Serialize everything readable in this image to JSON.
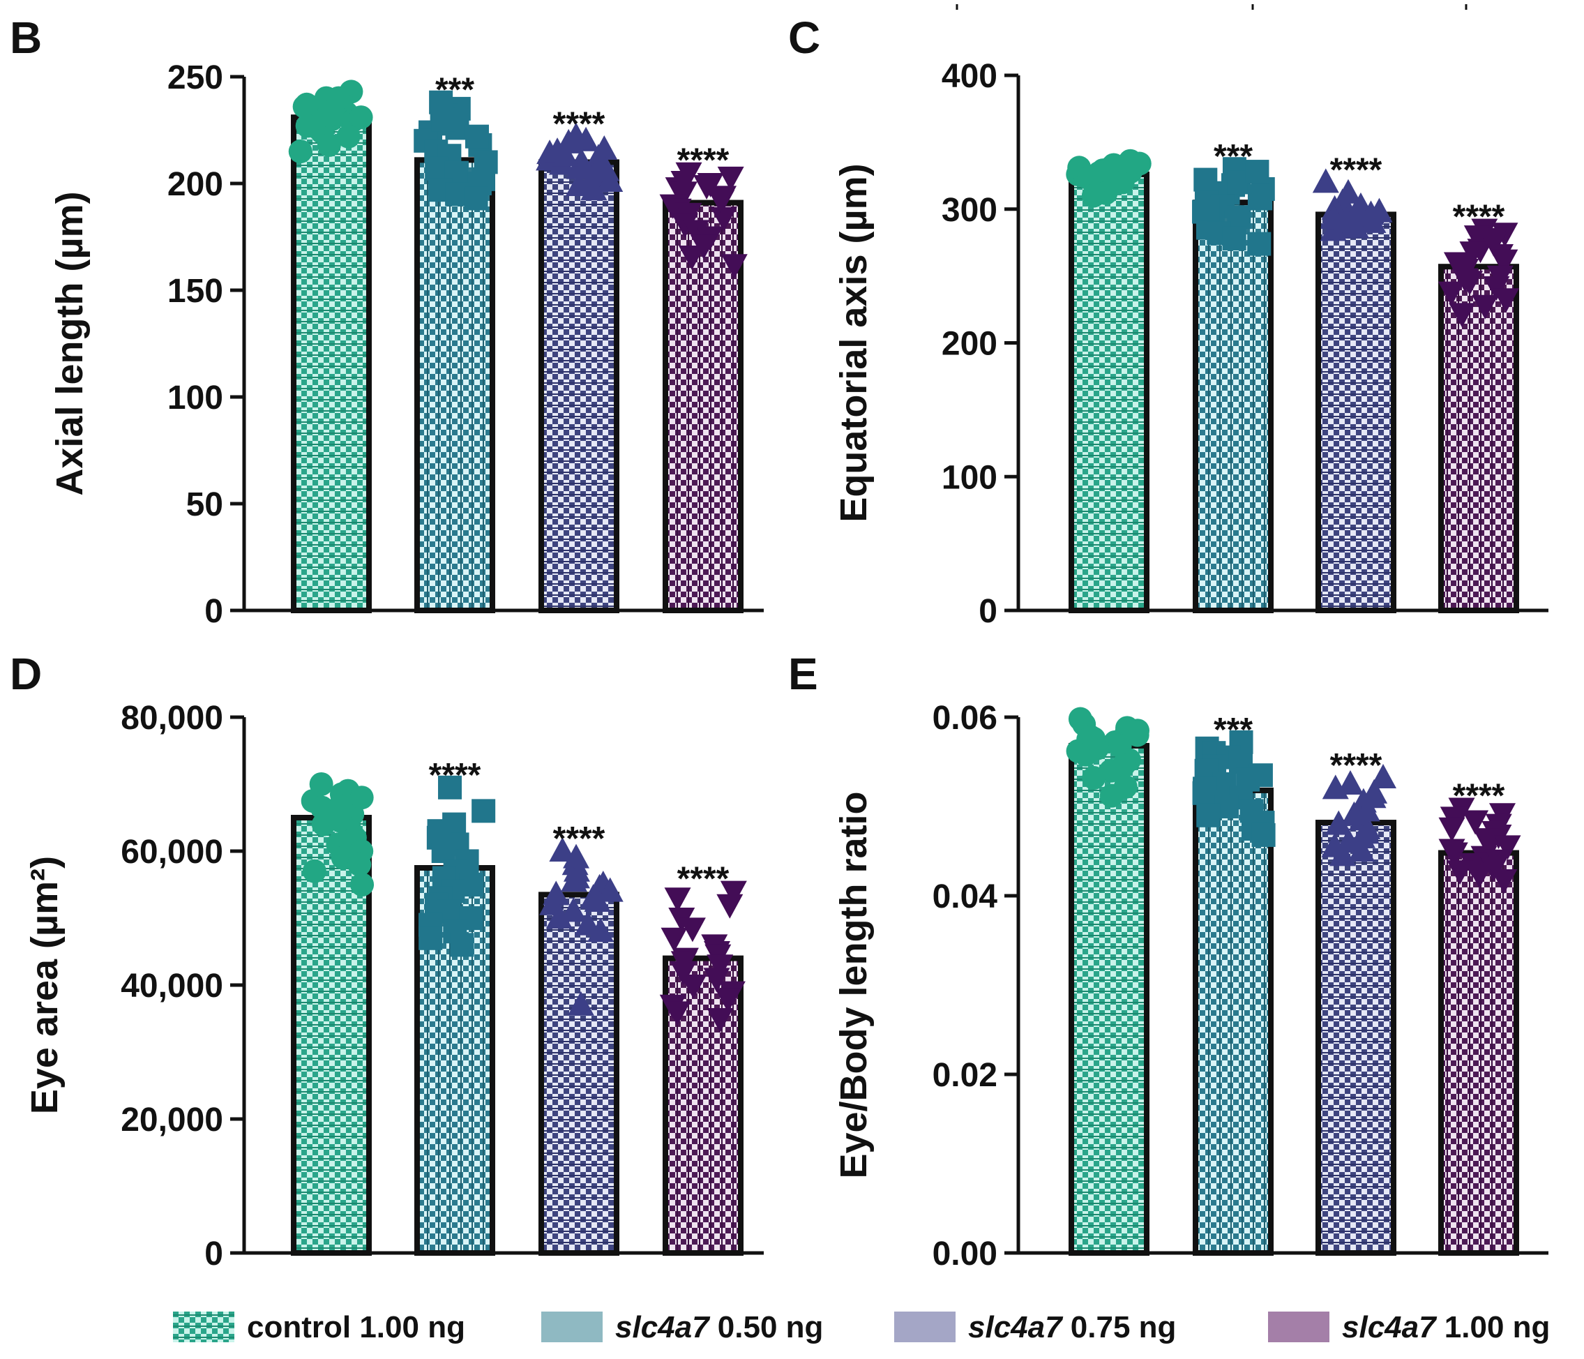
{
  "legend": [
    {
      "prefix": "",
      "italic": "",
      "label": "control 1.00 ng",
      "color": "#2aa58a",
      "pattern": "pat-control"
    },
    {
      "prefix": "",
      "italic": "slc4a7",
      "label": " 0.50 ng",
      "color": "#8fb9c2",
      "pattern": "solid"
    },
    {
      "prefix": "",
      "italic": "slc4a7",
      "label": " 0.75 ng",
      "color": "#a4a6c6",
      "pattern": "solid"
    },
    {
      "prefix": "",
      "italic": "slc4a7",
      "label": " 1.00 ng",
      "color": "#a47fa8",
      "pattern": "solid"
    }
  ],
  "chart_data": [
    {
      "panel": "B",
      "type": "bar",
      "ylabel": "Axial length (µm)",
      "ylim": [
        0,
        250
      ],
      "yticks": [
        0,
        50,
        100,
        150,
        200,
        250
      ],
      "ytick_labels": [
        "0",
        "50",
        "100",
        "150",
        "200",
        "250"
      ],
      "categories": [
        "control 1.00 ng",
        "slc4a7 0.50 ng",
        "slc4a7 0.75 ng",
        "slc4a7 1.00 ng"
      ],
      "values": [
        231,
        211,
        210,
        191
      ],
      "significance": [
        "",
        "***",
        "****",
        "****"
      ],
      "points": [
        [
          233,
          236,
          240,
          229,
          228,
          243,
          237,
          231,
          226,
          222,
          215,
          234,
          239,
          230,
          236,
          224,
          240,
          232,
          218,
          227
        ],
        [
          235,
          232,
          228,
          226,
          224,
          220,
          218,
          215,
          213,
          210,
          207,
          205,
          202,
          200,
          197,
          195,
          193,
          230,
          222,
          238
        ],
        [
          222,
          219,
          216,
          214,
          212,
          211,
          210,
          209,
          207,
          205,
          203,
          201,
          199,
          197,
          215,
          220,
          206,
          213
        ],
        [
          205,
          203,
          200,
          198,
          196,
          194,
          192,
          190,
          188,
          186,
          184,
          181,
          178,
          175,
          171,
          166,
          162,
          199,
          201,
          193
        ]
      ]
    },
    {
      "panel": "C",
      "type": "bar",
      "ylabel": "Equatorial axis (µm)",
      "ylim": [
        0,
        400
      ],
      "yticks": [
        0,
        100,
        200,
        300,
        400
      ],
      "ytick_labels": [
        "0",
        "100",
        "200",
        "300",
        "400"
      ],
      "categories": [
        "control 1.00 ng",
        "slc4a7 0.50 ng",
        "slc4a7 0.75 ng",
        "slc4a7 1.00 ng"
      ],
      "values": [
        326,
        305,
        296,
        257
      ],
      "significance": [
        "",
        "***",
        "****",
        "****"
      ],
      "points": [
        [
          330,
          333,
          328,
          326,
          324,
          322,
          336,
          332,
          318,
          320,
          334,
          329,
          315,
          325,
          331,
          327,
          323,
          312,
          335,
          310
        ],
        [
          330,
          326,
          322,
          318,
          315,
          312,
          308,
          305,
          302,
          298,
          294,
          290,
          286,
          282,
          278,
          274,
          320,
          310,
          300,
          328
        ],
        [
          320,
          312,
          305,
          302,
          298,
          296,
          294,
          292,
          290,
          288,
          286,
          284,
          300,
          296,
          293,
          291
        ],
        [
          285,
          282,
          278,
          275,
          270,
          266,
          262,
          258,
          255,
          250,
          246,
          242,
          238,
          233,
          228,
          222,
          280,
          268,
          260,
          248
        ]
      ]
    },
    {
      "panel": "D",
      "type": "bar",
      "ylabel": "Eye area (µm²)",
      "ylim": [
        0,
        80000
      ],
      "yticks": [
        0,
        20000,
        40000,
        60000,
        80000
      ],
      "ytick_labels": [
        "0",
        "20,000",
        "40,000",
        "60,000",
        "80,000"
      ],
      "categories": [
        "control 1.00 ng",
        "slc4a7 0.50 ng",
        "slc4a7 0.75 ng",
        "slc4a7 1.00 ng"
      ],
      "values": [
        65000,
        57500,
        53500,
        44000
      ],
      "significance": [
        "",
        "****",
        "****",
        "****"
      ],
      "points": [
        [
          70000,
          68500,
          67500,
          66500,
          66000,
          65500,
          65000,
          64500,
          64000,
          63000,
          62000,
          61000,
          60000,
          59000,
          58000,
          57000,
          55000,
          69000,
          68000,
          66800
        ],
        [
          69500,
          66000,
          64000,
          62000,
          61000,
          60000,
          58500,
          57000,
          56000,
          55000,
          54000,
          53000,
          52000,
          51000,
          50000,
          49000,
          48000,
          47000,
          46000,
          63000
        ],
        [
          60000,
          59000,
          58000,
          57000,
          56000,
          55000,
          54500,
          54000,
          53500,
          53000,
          52500,
          52000,
          51000,
          50000,
          49000,
          48000,
          37000,
          55500
        ],
        [
          54000,
          52000,
          50000,
          48500,
          47000,
          46000,
          45000,
          44500,
          44000,
          43500,
          43000,
          42000,
          41000,
          40000,
          39000,
          38000,
          37000,
          36000,
          35000,
          53000
        ]
      ]
    },
    {
      "panel": "E",
      "type": "bar",
      "ylabel": "Eye/Body length ratio",
      "ylim": [
        0,
        0.06
      ],
      "yticks": [
        0,
        0.02,
        0.04,
        0.06
      ],
      "ytick_labels": [
        "0.00",
        "0.02",
        "0.04",
        "0.06"
      ],
      "categories": [
        "control 1.00 ng",
        "slc4a7 0.50 ng",
        "slc4a7 0.75 ng",
        "slc4a7 1.00 ng"
      ],
      "values": [
        0.0568,
        0.0518,
        0.0482,
        0.0448
      ],
      "significance": [
        "",
        "***",
        "****",
        "****"
      ],
      "points": [
        [
          0.0598,
          0.0592,
          0.0588,
          0.0585,
          0.0582,
          0.0578,
          0.0575,
          0.0572,
          0.0568,
          0.0565,
          0.0562,
          0.0558,
          0.0552,
          0.0546,
          0.054,
          0.0532,
          0.0522,
          0.0512,
          0.058,
          0.0576
        ],
        [
          0.0572,
          0.0565,
          0.056,
          0.0555,
          0.055,
          0.0545,
          0.054,
          0.0535,
          0.053,
          0.0525,
          0.052,
          0.0515,
          0.051,
          0.0505,
          0.05,
          0.0495,
          0.049,
          0.0482,
          0.0475,
          0.0468
        ],
        [
          0.0532,
          0.0525,
          0.052,
          0.0515,
          0.051,
          0.0505,
          0.05,
          0.0495,
          0.049,
          0.0485,
          0.048,
          0.0475,
          0.047,
          0.0465,
          0.046,
          0.0455,
          0.045,
          0.0445
        ],
        [
          0.0498,
          0.0492,
          0.0488,
          0.0484,
          0.048,
          0.0476,
          0.0472,
          0.0468,
          0.0464,
          0.046,
          0.0456,
          0.0452,
          0.0448,
          0.0444,
          0.044,
          0.0436,
          0.0432,
          0.0428,
          0.0424,
          0.0418
        ]
      ]
    }
  ],
  "series_style": {
    "bar_colors": [
      "#2aa58a",
      "#2b7a8e",
      "#3e447f",
      "#4d1a55"
    ],
    "bar_light": [
      "#c9f3ea",
      "#d9f4f7",
      "#e6e8f6",
      "#efe3f0"
    ],
    "marker_colors": [
      "#22a784",
      "#21768c",
      "#3c3f87",
      "#430d56"
    ],
    "markers": [
      "circle",
      "square",
      "triangle",
      "triangle-down"
    ]
  }
}
